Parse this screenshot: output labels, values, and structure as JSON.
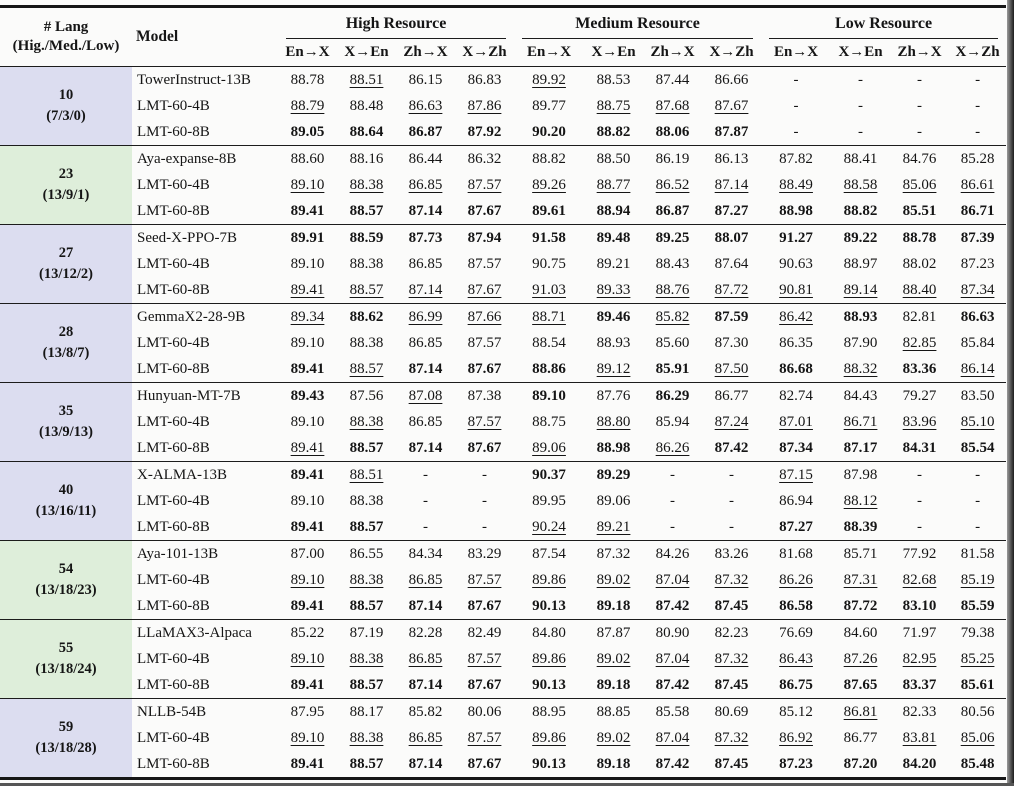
{
  "table": {
    "header": {
      "lang_line1": "# Lang",
      "lang_line2": "(Hig./Med./Low)",
      "model": "Model",
      "groups": [
        "High Resource",
        "Medium Resource",
        "Low Resource"
      ],
      "directions": [
        "En→X",
        "X→En",
        "Zh→X",
        "X→Zh"
      ]
    },
    "colors": {
      "lavender": "#dcddf0",
      "green": "#deeeda"
    },
    "style_legend": {
      "p": "plain",
      "b": "bold-best",
      "u": "underline-second-best"
    },
    "row_groups": [
      {
        "lang": "10",
        "split": "(7/3/0)",
        "color": "lavender",
        "rows": [
          {
            "model": "TowerInstruct-13B",
            "cells": [
              "88.78|p",
              "88.51|u",
              "86.15|p",
              "86.83|p",
              "89.92|u",
              "88.53|p",
              "87.44|p",
              "86.66|p",
              "-|p",
              "-|p",
              "-|p",
              "-|p"
            ]
          },
          {
            "model": "LMT-60-4B",
            "cells": [
              "88.79|u",
              "88.48|p",
              "86.63|u",
              "87.86|u",
              "89.77|p",
              "88.75|u",
              "87.68|u",
              "87.67|u",
              "-|p",
              "-|p",
              "-|p",
              "-|p"
            ]
          },
          {
            "model": "LMT-60-8B",
            "cells": [
              "89.05|b",
              "88.64|b",
              "86.87|b",
              "87.92|b",
              "90.20|b",
              "88.82|b",
              "88.06|b",
              "87.87|b",
              "-|p",
              "-|p",
              "-|p",
              "-|p"
            ]
          }
        ]
      },
      {
        "lang": "23",
        "split": "(13/9/1)",
        "color": "green",
        "rows": [
          {
            "model": "Aya-expanse-8B",
            "cells": [
              "88.60|p",
              "88.16|p",
              "86.44|p",
              "86.32|p",
              "88.82|p",
              "88.50|p",
              "86.19|p",
              "86.13|p",
              "87.82|p",
              "88.41|p",
              "84.76|p",
              "85.28|p"
            ]
          },
          {
            "model": "LMT-60-4B",
            "cells": [
              "89.10|u",
              "88.38|u",
              "86.85|u",
              "87.57|u",
              "89.26|u",
              "88.77|u",
              "86.52|u",
              "87.14|u",
              "88.49|u",
              "88.58|u",
              "85.06|u",
              "86.61|u"
            ]
          },
          {
            "model": "LMT-60-8B",
            "cells": [
              "89.41|b",
              "88.57|b",
              "87.14|b",
              "87.67|b",
              "89.61|b",
              "88.94|b",
              "86.87|b",
              "87.27|b",
              "88.98|b",
              "88.82|b",
              "85.51|b",
              "86.71|b"
            ]
          }
        ]
      },
      {
        "lang": "27",
        "split": "(13/12/2)",
        "color": "lavender",
        "rows": [
          {
            "model": "Seed-X-PPO-7B",
            "cells": [
              "89.91|b",
              "88.59|b",
              "87.73|b",
              "87.94|b",
              "91.58|b",
              "89.48|b",
              "89.25|b",
              "88.07|b",
              "91.27|b",
              "89.22|b",
              "88.78|b",
              "87.39|b"
            ]
          },
          {
            "model": "LMT-60-4B",
            "cells": [
              "89.10|p",
              "88.38|p",
              "86.85|p",
              "87.57|p",
              "90.75|p",
              "89.21|p",
              "88.43|p",
              "87.64|p",
              "90.63|p",
              "88.97|p",
              "88.02|p",
              "87.23|p"
            ]
          },
          {
            "model": "LMT-60-8B",
            "cells": [
              "89.41|u",
              "88.57|u",
              "87.14|u",
              "87.67|u",
              "91.03|u",
              "89.33|u",
              "88.76|u",
              "87.72|u",
              "90.81|u",
              "89.14|u",
              "88.40|u",
              "87.34|u"
            ]
          }
        ]
      },
      {
        "lang": "28",
        "split": "(13/8/7)",
        "color": "lavender",
        "rows": [
          {
            "model": "GemmaX2-28-9B",
            "cells": [
              "89.34|u",
              "88.62|b",
              "86.99|u",
              "87.66|u",
              "88.71|u",
              "89.46|b",
              "85.82|u",
              "87.59|b",
              "86.42|u",
              "88.93|b",
              "82.81|p",
              "86.63|b"
            ]
          },
          {
            "model": "LMT-60-4B",
            "cells": [
              "89.10|p",
              "88.38|p",
              "86.85|p",
              "87.57|p",
              "88.54|p",
              "88.93|p",
              "85.60|p",
              "87.30|p",
              "86.35|p",
              "87.90|p",
              "82.85|u",
              "85.84|p"
            ]
          },
          {
            "model": "LMT-60-8B",
            "cells": [
              "89.41|b",
              "88.57|u",
              "87.14|b",
              "87.67|b",
              "88.86|b",
              "89.12|u",
              "85.91|b",
              "87.50|u",
              "86.68|b",
              "88.32|u",
              "83.36|b",
              "86.14|u"
            ]
          }
        ]
      },
      {
        "lang": "35",
        "split": "(13/9/13)",
        "color": "lavender",
        "rows": [
          {
            "model": "Hunyuan-MT-7B",
            "cells": [
              "89.43|b",
              "87.56|p",
              "87.08|u",
              "87.38|p",
              "89.10|b",
              "87.76|p",
              "86.29|b",
              "86.77|p",
              "82.74|p",
              "84.43|p",
              "79.27|p",
              "83.50|p"
            ]
          },
          {
            "model": "LMT-60-4B",
            "cells": [
              "89.10|p",
              "88.38|u",
              "86.85|p",
              "87.57|u",
              "88.75|p",
              "88.80|u",
              "85.94|p",
              "87.24|u",
              "87.01|u",
              "86.71|u",
              "83.96|u",
              "85.10|u"
            ]
          },
          {
            "model": "LMT-60-8B",
            "cells": [
              "89.41|u",
              "88.57|b",
              "87.14|b",
              "87.67|b",
              "89.06|u",
              "88.98|b",
              "86.26|u",
              "87.42|b",
              "87.34|b",
              "87.17|b",
              "84.31|b",
              "85.54|b"
            ]
          }
        ]
      },
      {
        "lang": "40",
        "split": "(13/16/11)",
        "color": "lavender",
        "rows": [
          {
            "model": "X-ALMA-13B",
            "cells": [
              "89.41|b",
              "88.51|u",
              "-|p",
              "-|p",
              "90.37|b",
              "89.29|b",
              "-|p",
              "-|p",
              "87.15|u",
              "87.98|p",
              "-|p",
              "-|p"
            ]
          },
          {
            "model": "LMT-60-4B",
            "cells": [
              "89.10|p",
              "88.38|p",
              "-|p",
              "-|p",
              "89.95|p",
              "89.06|p",
              "-|p",
              "-|p",
              "86.94|p",
              "88.12|u",
              "-|p",
              "-|p"
            ]
          },
          {
            "model": "LMT-60-8B",
            "cells": [
              "89.41|b",
              "88.57|b",
              "-|p",
              "-|p",
              "90.24|u",
              "89.21|u",
              "-|p",
              "-|p",
              "87.27|b",
              "88.39|b",
              "-|p",
              "-|p"
            ]
          }
        ]
      },
      {
        "lang": "54",
        "split": "(13/18/23)",
        "color": "green",
        "rows": [
          {
            "model": "Aya-101-13B",
            "cells": [
              "87.00|p",
              "86.55|p",
              "84.34|p",
              "83.29|p",
              "87.54|p",
              "87.32|p",
              "84.26|p",
              "83.26|p",
              "81.68|p",
              "85.71|p",
              "77.92|p",
              "81.58|p"
            ]
          },
          {
            "model": "LMT-60-4B",
            "cells": [
              "89.10|u",
              "88.38|u",
              "86.85|u",
              "87.57|u",
              "89.86|u",
              "89.02|u",
              "87.04|u",
              "87.32|u",
              "86.26|u",
              "87.31|u",
              "82.68|u",
              "85.19|u"
            ]
          },
          {
            "model": "LMT-60-8B",
            "cells": [
              "89.41|b",
              "88.57|b",
              "87.14|b",
              "87.67|b",
              "90.13|b",
              "89.18|b",
              "87.42|b",
              "87.45|b",
              "86.58|b",
              "87.72|b",
              "83.10|b",
              "85.59|b"
            ]
          }
        ]
      },
      {
        "lang": "55",
        "split": "(13/18/24)",
        "color": "green",
        "rows": [
          {
            "model": "LLaMAX3-Alpaca",
            "cells": [
              "85.22|p",
              "87.19|p",
              "82.28|p",
              "82.49|p",
              "84.80|p",
              "87.87|p",
              "80.90|p",
              "82.23|p",
              "76.69|p",
              "84.60|p",
              "71.97|p",
              "79.38|p"
            ]
          },
          {
            "model": "LMT-60-4B",
            "cells": [
              "89.10|u",
              "88.38|u",
              "86.85|u",
              "87.57|u",
              "89.86|u",
              "89.02|u",
              "87.04|u",
              "87.32|u",
              "86.43|u",
              "87.26|u",
              "82.95|u",
              "85.25|u"
            ]
          },
          {
            "model": "LMT-60-8B",
            "cells": [
              "89.41|b",
              "88.57|b",
              "87.14|b",
              "87.67|b",
              "90.13|b",
              "89.18|b",
              "87.42|b",
              "87.45|b",
              "86.75|b",
              "87.65|b",
              "83.37|b",
              "85.61|b"
            ]
          }
        ]
      },
      {
        "lang": "59",
        "split": "(13/18/28)",
        "color": "lavender",
        "rows": [
          {
            "model": "NLLB-54B",
            "cells": [
              "87.95|p",
              "88.17|p",
              "85.82|p",
              "80.06|p",
              "88.95|p",
              "88.85|p",
              "85.58|p",
              "80.69|p",
              "85.12|p",
              "86.81|u",
              "82.33|p",
              "80.56|p"
            ]
          },
          {
            "model": "LMT-60-4B",
            "cells": [
              "89.10|u",
              "88.38|u",
              "86.85|u",
              "87.57|u",
              "89.86|u",
              "89.02|u",
              "87.04|u",
              "87.32|u",
              "86.92|u",
              "86.77|p",
              "83.81|u",
              "85.06|u"
            ]
          },
          {
            "model": "LMT-60-8B",
            "cells": [
              "89.41|b",
              "88.57|b",
              "87.14|b",
              "87.67|b",
              "90.13|b",
              "89.18|b",
              "87.42|b",
              "87.45|b",
              "87.23|b",
              "87.20|b",
              "84.20|b",
              "85.48|b"
            ]
          }
        ]
      }
    ]
  }
}
